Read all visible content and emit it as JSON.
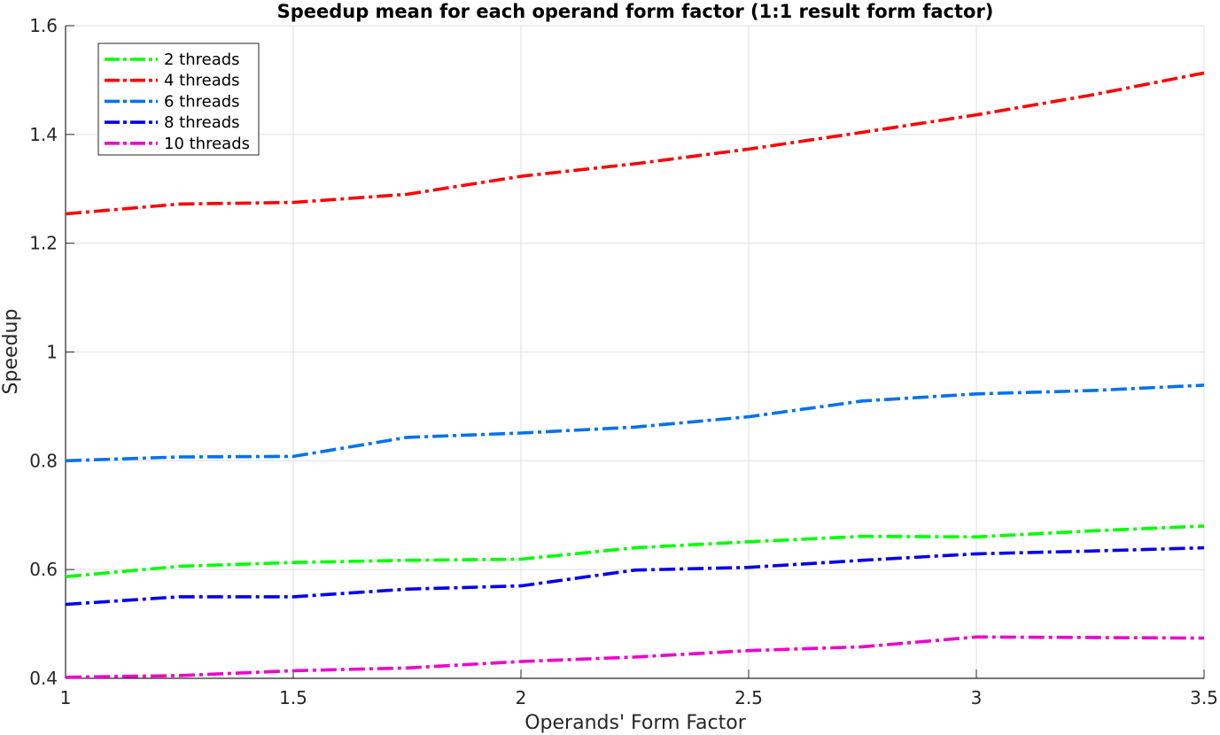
{
  "chart_data": {
    "type": "line",
    "title": "Speedup mean for each operand form factor (1:1 result form factor)",
    "xlabel": "Operands' Form Factor",
    "ylabel": "Speedup",
    "xlim": [
      1,
      3.5
    ],
    "ylim": [
      0.4,
      1.6
    ],
    "xticks": [
      1,
      1.5,
      2,
      2.5,
      3,
      3.5
    ],
    "xtick_labels": [
      "1",
      "1.5",
      "2",
      "2.5",
      "3",
      "3.5"
    ],
    "yticks": [
      0.4,
      0.6,
      0.8,
      1.0,
      1.2,
      1.4,
      1.6
    ],
    "ytick_labels": [
      "0.4",
      "0.6",
      "0.8",
      "1",
      "1.2",
      "1.4",
      "1.6"
    ],
    "grid": true,
    "legend_position": "top-left",
    "line_style": "dash-dot",
    "x": [
      1,
      1.25,
      1.5,
      1.75,
      2,
      2.25,
      2.5,
      2.75,
      3,
      3.25,
      3.5
    ],
    "series": [
      {
        "name": "2 threads",
        "color": "#00ff00",
        "values": [
          0.587,
          0.606,
          0.613,
          0.617,
          0.619,
          0.64,
          0.651,
          0.661,
          0.66,
          0.671,
          0.68
        ]
      },
      {
        "name": "4 threads",
        "color": "#ff0000",
        "values": [
          1.254,
          1.272,
          1.275,
          1.29,
          1.323,
          1.346,
          1.373,
          1.404,
          1.436,
          1.472,
          1.513
        ]
      },
      {
        "name": "6 threads",
        "color": "#0072ee",
        "values": [
          0.8,
          0.807,
          0.808,
          0.843,
          0.851,
          0.862,
          0.881,
          0.91,
          0.923,
          0.929,
          0.939
        ]
      },
      {
        "name": "8 threads",
        "color": "#0000ee",
        "values": [
          0.536,
          0.55,
          0.55,
          0.564,
          0.57,
          0.599,
          0.604,
          0.617,
          0.629,
          0.634,
          0.64
        ]
      },
      {
        "name": "10 threads",
        "color": "#ee00cc",
        "values": [
          0.402,
          0.405,
          0.414,
          0.419,
          0.431,
          0.439,
          0.451,
          0.458,
          0.476,
          0.475,
          0.474
        ]
      }
    ]
  }
}
